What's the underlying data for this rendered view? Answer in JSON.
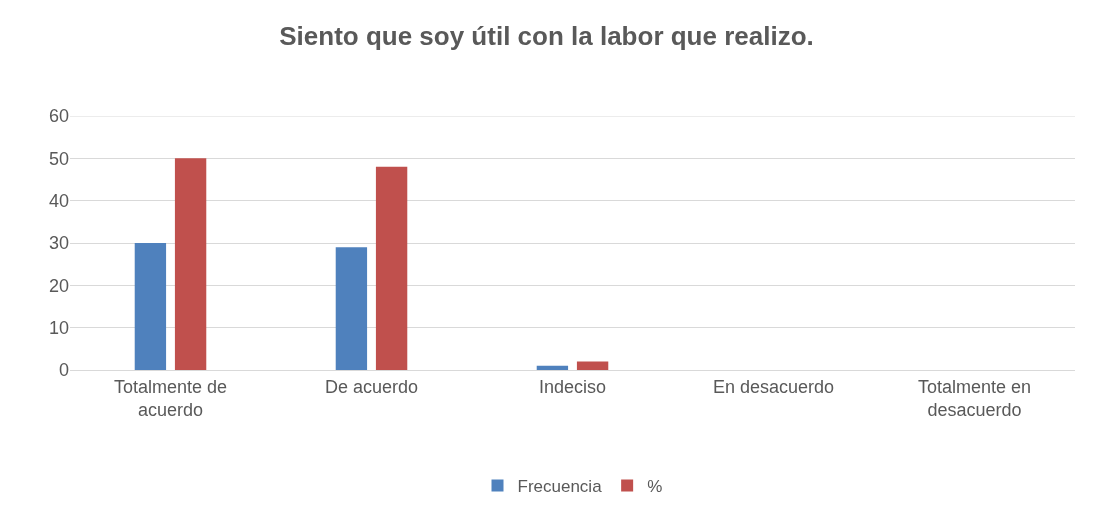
{
  "chart_data": {
    "type": "bar",
    "title": "Siento que soy útil con la labor que realizo.",
    "categories": [
      "Totalmente de acuerdo",
      "De acuerdo",
      "Indeciso",
      "En desacuerdo",
      "Totalmente en desacuerdo"
    ],
    "series": [
      {
        "name": "Frecuencia",
        "color": "#4f81bd",
        "values": [
          30,
          29,
          1,
          0,
          0
        ]
      },
      {
        "name": "%",
        "color": "#c0504d",
        "values": [
          50,
          48,
          2,
          0,
          0
        ]
      }
    ],
    "ylim": [
      0,
      60
    ],
    "yticks": [
      0,
      10,
      20,
      30,
      40,
      50,
      60
    ],
    "grid": "y",
    "legend": "bottom"
  }
}
